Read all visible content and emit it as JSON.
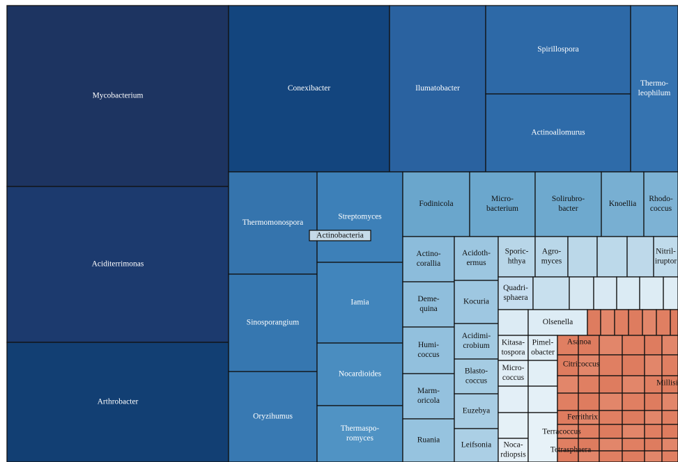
{
  "root_label": "Actinobacteria",
  "nodes": [
    {
      "label": [
        "Mycobacterium"
      ]
    },
    {
      "label": [
        "Aciditerrimonas"
      ]
    },
    {
      "label": [
        "Arthrobacter"
      ]
    },
    {
      "label": [
        "Conexibacter"
      ]
    },
    {
      "label": [
        "Ilumatobacter"
      ]
    },
    {
      "label": [
        "Spirillospora"
      ]
    },
    {
      "label": [
        "Actinoallomurus"
      ]
    },
    {
      "label": [
        "Thermo-",
        "leophilum"
      ]
    },
    {
      "label": [
        "Thermomonospora"
      ]
    },
    {
      "label": [
        "Sinosporangium"
      ]
    },
    {
      "label": [
        "Oryzihumus"
      ]
    },
    {
      "label": [
        "Streptomyces"
      ]
    },
    {
      "label": [
        "Iamia"
      ]
    },
    {
      "label": [
        "Nocardioides"
      ]
    },
    {
      "label": [
        "Thermaspo-",
        "romyces"
      ]
    },
    {
      "label": [
        "Fodinicola"
      ]
    },
    {
      "label": [
        "Micro-",
        "bacterium"
      ]
    },
    {
      "label": [
        "Solirubro-",
        "bacter"
      ]
    },
    {
      "label": [
        "Knoellia"
      ]
    },
    {
      "label": [
        "Rhodo-",
        "coccus"
      ]
    },
    {
      "label": [
        "Actino-",
        "corallia"
      ]
    },
    {
      "label": [
        "Deme-",
        "quina"
      ]
    },
    {
      "label": [
        "Humi-",
        "coccus"
      ]
    },
    {
      "label": [
        "Marm-",
        "oricola"
      ]
    },
    {
      "label": [
        "Ruania"
      ]
    },
    {
      "label": [
        "Acidoth-",
        "ermus"
      ]
    },
    {
      "label": [
        "Kocuria"
      ]
    },
    {
      "label": [
        "Acidimi-",
        "crobium"
      ]
    },
    {
      "label": [
        "Blasto-",
        "coccus"
      ]
    },
    {
      "label": [
        "Euzebya"
      ]
    },
    {
      "label": [
        "Leifsonia"
      ]
    },
    {
      "label": [
        "Sporic-",
        "hthya"
      ]
    },
    {
      "label": [
        "Agro-",
        "myces"
      ]
    },
    {
      "label": [
        "Nitril-",
        "iruptor"
      ]
    },
    {
      "label": [
        "Quadri-",
        "sphaera"
      ]
    },
    {
      "label": [
        "Olsenella"
      ]
    },
    {
      "label": [
        "Kitasa-",
        "tospora"
      ]
    },
    {
      "label": [
        "Pimel-",
        "obacter"
      ]
    },
    {
      "label": [
        "Micro-",
        "coccus"
      ]
    },
    {
      "label": [
        "Noca-",
        "rdiopsis"
      ]
    },
    {
      "label": [
        "Asanoa"
      ]
    },
    {
      "label": [
        "Citricoccus"
      ]
    },
    {
      "label": [
        "Millisia"
      ]
    },
    {
      "label": [
        "Ferrithrix"
      ]
    },
    {
      "label": [
        "Terracoccus"
      ]
    },
    {
      "label": [
        "Tetrasphaera"
      ]
    }
  ]
}
